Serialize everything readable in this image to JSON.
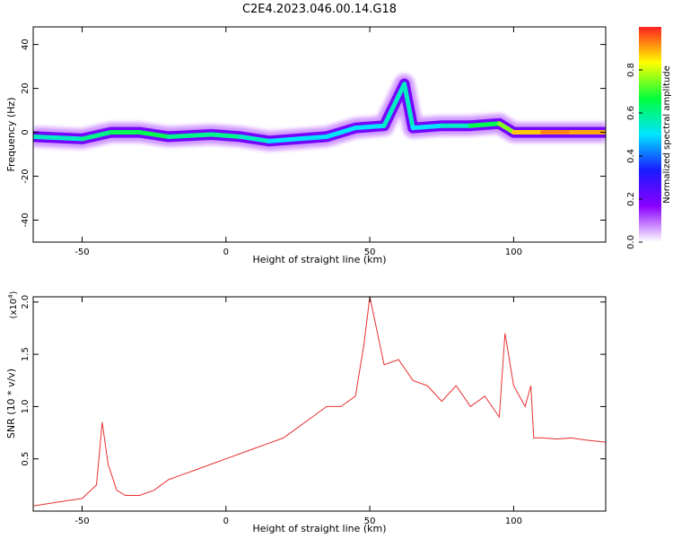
{
  "title": "C2E4.2023.046.00.14.G18",
  "chart_data": [
    {
      "type": "heatmap",
      "xlabel": "Height of straight line (km)",
      "ylabel": "Frequency (Hz)",
      "xlim": [
        -67,
        132
      ],
      "ylim": [
        -50,
        48
      ],
      "xticks": [
        -50,
        0,
        50,
        100
      ],
      "yticks": [
        -40,
        -20,
        0,
        20,
        40
      ],
      "grid": false,
      "colorbar": {
        "label": "Normalized spectral amplitude",
        "range": [
          0.0,
          1.0
        ],
        "ticks": [
          "0.0",
          "0.2",
          "0.4",
          "0.6",
          "0.8"
        ],
        "colormap": [
          "#ffffff",
          "#8a00ff",
          "#1a1aff",
          "#00e5ff",
          "#00ff3c",
          "#ffff00",
          "#ff2020"
        ]
      },
      "ridge": [
        {
          "x": -67,
          "y": -2,
          "amp": 0.5
        },
        {
          "x": -50,
          "y": -3,
          "amp": 0.6
        },
        {
          "x": -40,
          "y": 0,
          "amp": 0.6
        },
        {
          "x": -30,
          "y": 0,
          "amp": 0.7
        },
        {
          "x": -20,
          "y": -2,
          "amp": 0.6
        },
        {
          "x": -5,
          "y": -1,
          "amp": 0.6
        },
        {
          "x": 5,
          "y": -2,
          "amp": 0.6
        },
        {
          "x": 15,
          "y": -4,
          "amp": 0.5
        },
        {
          "x": 25,
          "y": -3,
          "amp": 0.5
        },
        {
          "x": 35,
          "y": -2,
          "amp": 0.5
        },
        {
          "x": 45,
          "y": 2,
          "amp": 0.5
        },
        {
          "x": 55,
          "y": 3,
          "amp": 0.5
        },
        {
          "x": 62,
          "y": 22,
          "amp": 0.6
        },
        {
          "x": 65,
          "y": 2,
          "amp": 0.5
        },
        {
          "x": 75,
          "y": 3,
          "amp": 0.5
        },
        {
          "x": 85,
          "y": 3,
          "amp": 0.6
        },
        {
          "x": 95,
          "y": 4,
          "amp": 0.7
        },
        {
          "x": 100,
          "y": 0,
          "amp": 0.8
        },
        {
          "x": 110,
          "y": 0,
          "amp": 0.95
        },
        {
          "x": 120,
          "y": 0,
          "amp": 0.9
        },
        {
          "x": 132,
          "y": 0,
          "amp": 0.9
        }
      ]
    },
    {
      "type": "line",
      "xlabel": "Height of straight line (km)",
      "ylabel": "SNR (10 * v/v)",
      "yscale_label": "(x10",
      "yscale_exp": "4",
      "yscale_close": ")",
      "xlim": [
        -67,
        132
      ],
      "ylim": [
        0,
        2.05
      ],
      "xticks": [
        -50,
        0,
        50,
        100
      ],
      "yticks": [
        0.5,
        1.0,
        1.5,
        2.0
      ],
      "color": "#e83030",
      "grid": false,
      "series": [
        {
          "x": [
            -67,
            -60,
            -55,
            -50,
            -45,
            -43,
            -41,
            -38,
            -35,
            -30,
            -25,
            -20,
            -15,
            -10,
            -5,
            0,
            5,
            10,
            15,
            20,
            25,
            30,
            35,
            40,
            45,
            48,
            50,
            55,
            60,
            65,
            70,
            75,
            80,
            85,
            90,
            95,
            97,
            100,
            104,
            106,
            107,
            110,
            115,
            120,
            125,
            132
          ],
          "y": [
            0.05,
            0.08,
            0.1,
            0.12,
            0.25,
            0.85,
            0.45,
            0.2,
            0.15,
            0.15,
            0.2,
            0.3,
            0.35,
            0.4,
            0.45,
            0.5,
            0.55,
            0.6,
            0.65,
            0.7,
            0.8,
            0.9,
            1.0,
            1.0,
            1.1,
            1.6,
            2.05,
            1.4,
            1.45,
            1.25,
            1.2,
            1.05,
            1.2,
            1.0,
            1.1,
            0.9,
            1.7,
            1.2,
            1.0,
            1.2,
            0.7,
            0.7,
            0.69,
            0.7,
            0.68,
            0.66
          ]
        }
      ]
    }
  ]
}
